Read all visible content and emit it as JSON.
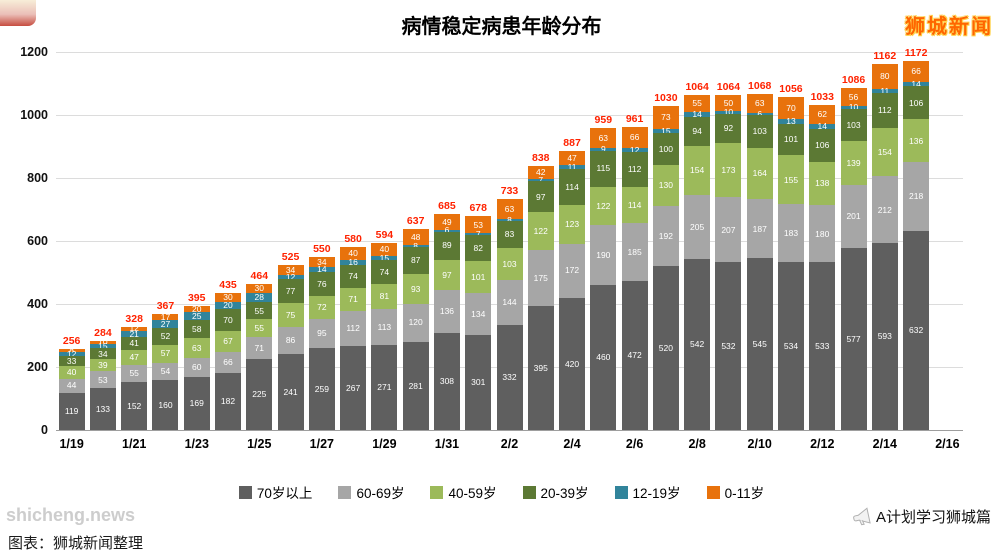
{
  "page": {
    "title": "病情稳定病患年龄分布",
    "site_logo": "狮城新闻",
    "watermark": "shicheng.news",
    "caption": "图表：狮城新闻整理",
    "footer_right": "A计划学习狮城篇",
    "logo_color": "#ff6600"
  },
  "chart_data": {
    "type": "bar",
    "stacked": true,
    "title": "病情稳定病患年龄分布",
    "xlabel": "",
    "ylabel": "",
    "ylim": [
      0,
      1200
    ],
    "yticks": [
      0,
      200,
      400,
      600,
      800,
      1000,
      1200
    ],
    "grid": true,
    "legend_position": "bottom",
    "total_label_color": "#ff2200",
    "x": [
      "1/19",
      "1/20",
      "1/21",
      "1/22",
      "1/23",
      "1/24",
      "1/25",
      "1/26",
      "1/27",
      "1/28",
      "1/29",
      "1/30",
      "1/31",
      "2/1",
      "2/2",
      "2/3",
      "2/4",
      "2/5",
      "2/6",
      "2/7",
      "2/8",
      "2/9",
      "2/10",
      "2/11",
      "2/12",
      "2/13",
      "2/14",
      "2/15"
    ],
    "x_tick_labels": [
      "1/19",
      "1/21",
      "1/23",
      "1/25",
      "1/27",
      "1/29",
      "1/31",
      "2/2",
      "2/4",
      "2/6",
      "2/8",
      "2/10",
      "2/12",
      "2/14",
      "2/16"
    ],
    "totals": [
      256,
      284,
      328,
      367,
      395,
      435,
      464,
      525,
      550,
      580,
      594,
      637,
      685,
      678,
      733,
      838,
      887,
      959,
      961,
      1030,
      1064,
      1064,
      1068,
      1056,
      1033,
      1086,
      1162,
      1172
    ],
    "series": [
      {
        "name": "70岁以上",
        "color": "#5f5f5f",
        "values": [
          119,
          133,
          152,
          160,
          169,
          182,
          225,
          241,
          259,
          267,
          271,
          281,
          308,
          301,
          332,
          395,
          420,
          460,
          472,
          520,
          542,
          532,
          545,
          534,
          533,
          577,
          593,
          632
        ]
      },
      {
        "name": "60-69岁",
        "color": "#a6a6a6",
        "values": [
          44,
          53,
          55,
          54,
          60,
          66,
          71,
          86,
          95,
          112,
          113,
          120,
          136,
          134,
          144,
          175,
          172,
          190,
          185,
          192,
          205,
          207,
          187,
          183,
          180,
          201,
          212,
          218
        ]
      },
      {
        "name": "40-59岁",
        "color": "#9cba5a",
        "values": [
          40,
          39,
          47,
          57,
          63,
          67,
          55,
          75,
          72,
          71,
          81,
          93,
          97,
          101,
          103,
          122,
          123,
          122,
          114,
          130,
          154,
          173,
          164,
          155,
          138,
          139,
          154,
          136
        ]
      },
      {
        "name": "20-39岁",
        "color": "#5c7934",
        "values": [
          33,
          34,
          41,
          52,
          58,
          70,
          55,
          77,
          76,
          74,
          74,
          87,
          89,
          82,
          83,
          97,
          114,
          115,
          112,
          100,
          94,
          92,
          103,
          101,
          106,
          103,
          112,
          106
        ]
      },
      {
        "name": "12-19岁",
        "color": "#31849b",
        "values": [
          12,
          15,
          21,
          27,
          25,
          20,
          28,
          12,
          14,
          16,
          15,
          8,
          6,
          7,
          8,
          7,
          11,
          9,
          12,
          15,
          14,
          10,
          6,
          13,
          14,
          10,
          11,
          14
        ]
      },
      {
        "name": "0-11岁",
        "color": "#e8720c",
        "values": [
          8,
          10,
          12,
          17,
          20,
          30,
          30,
          34,
          34,
          40,
          40,
          48,
          49,
          53,
          63,
          42,
          47,
          63,
          66,
          73,
          55,
          50,
          63,
          70,
          62,
          56,
          80,
          66
        ]
      }
    ]
  }
}
